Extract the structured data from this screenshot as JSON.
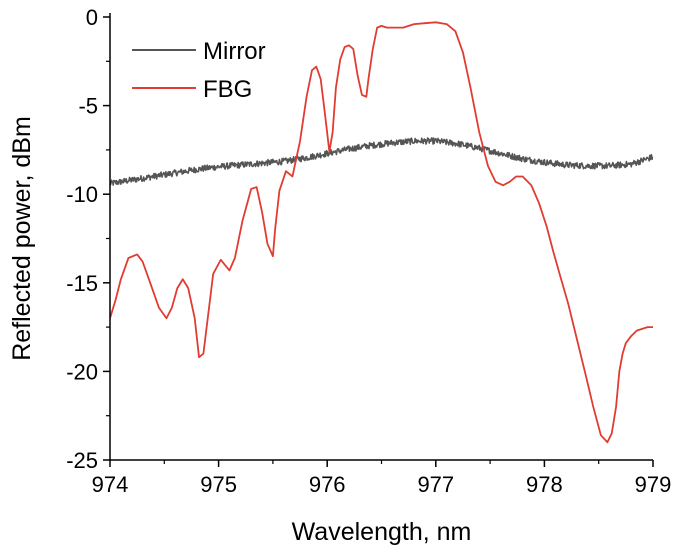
{
  "chart_data": {
    "type": "line",
    "title": "",
    "xlabel": "Wavelength, nm",
    "ylabel": "Reflected power, dBm",
    "xlim": [
      974,
      979
    ],
    "ylim": [
      -25,
      0
    ],
    "x_ticks": [
      974,
      975,
      976,
      977,
      978,
      979
    ],
    "y_ticks": [
      0,
      -5,
      -10,
      -15,
      -20,
      -25
    ],
    "x_tick_labels": [
      "974",
      "975",
      "976",
      "977",
      "978",
      "979"
    ],
    "y_tick_labels": [
      "0",
      "-5",
      "-10",
      "-15",
      "-20",
      "-25"
    ],
    "grid": false,
    "legend_position": "top-left",
    "series": [
      {
        "name": "Mirror",
        "color": "#555555",
        "noisy": true,
        "x": [
          974.0,
          974.2,
          974.4,
          974.6,
          974.8,
          975.0,
          975.2,
          975.4,
          975.6,
          975.8,
          976.0,
          976.2,
          976.4,
          976.6,
          976.8,
          977.0,
          977.2,
          977.4,
          977.6,
          977.8,
          978.0,
          978.2,
          978.4,
          978.6,
          978.8,
          979.0
        ],
        "y": [
          -9.4,
          -9.2,
          -9.0,
          -8.8,
          -8.6,
          -8.45,
          -8.35,
          -8.25,
          -8.15,
          -7.95,
          -7.7,
          -7.45,
          -7.25,
          -7.1,
          -7.0,
          -7.0,
          -7.15,
          -7.4,
          -7.7,
          -8.0,
          -8.2,
          -8.35,
          -8.4,
          -8.4,
          -8.3,
          -7.9
        ]
      },
      {
        "name": "FBG",
        "color": "#e03c32",
        "noisy": false,
        "x": [
          974.0,
          974.05,
          974.1,
          974.17,
          974.25,
          974.3,
          974.37,
          974.45,
          974.52,
          974.57,
          974.62,
          974.67,
          974.72,
          974.78,
          974.82,
          974.86,
          974.9,
          974.95,
          975.02,
          975.1,
          975.15,
          975.22,
          975.3,
          975.35,
          975.4,
          975.45,
          975.5,
          975.52,
          975.56,
          975.62,
          975.68,
          975.75,
          975.81,
          975.86,
          975.9,
          975.94,
          975.98,
          976.02,
          976.05,
          976.08,
          976.12,
          976.16,
          976.2,
          976.24,
          976.28,
          976.32,
          976.36,
          976.38,
          976.42,
          976.46,
          976.5,
          976.55,
          976.6,
          976.7,
          976.8,
          976.9,
          977.0,
          977.1,
          977.18,
          977.25,
          977.32,
          977.4,
          977.48,
          977.55,
          977.62,
          977.68,
          977.74,
          977.8,
          977.88,
          977.95,
          978.02,
          978.08,
          978.14,
          978.22,
          978.3,
          978.38,
          978.45,
          978.52,
          978.58,
          978.62,
          978.66,
          978.69,
          978.72,
          978.75,
          978.8,
          978.85,
          978.9,
          978.95,
          979.0
        ],
        "y": [
          -17.0,
          -16.0,
          -14.8,
          -13.6,
          -13.4,
          -13.8,
          -15.0,
          -16.4,
          -17.0,
          -16.4,
          -15.3,
          -14.8,
          -15.3,
          -17.0,
          -19.2,
          -19.0,
          -17.0,
          -14.5,
          -13.7,
          -14.3,
          -13.6,
          -11.5,
          -9.7,
          -9.6,
          -11.0,
          -12.8,
          -13.5,
          -12.0,
          -9.8,
          -8.7,
          -9.0,
          -7.0,
          -4.5,
          -3.0,
          -2.8,
          -3.5,
          -5.5,
          -7.6,
          -6.5,
          -4.0,
          -2.4,
          -1.7,
          -1.6,
          -1.8,
          -3.3,
          -4.4,
          -4.5,
          -3.5,
          -1.8,
          -0.6,
          -0.5,
          -0.6,
          -0.6,
          -0.6,
          -0.4,
          -0.35,
          -0.3,
          -0.4,
          -0.8,
          -2.0,
          -4.0,
          -6.5,
          -8.4,
          -9.3,
          -9.5,
          -9.3,
          -9.0,
          -9.0,
          -9.5,
          -10.5,
          -11.8,
          -13.2,
          -14.5,
          -16.2,
          -18.2,
          -20.2,
          -22.0,
          -23.6,
          -24.0,
          -23.5,
          -22.0,
          -20.0,
          -19.0,
          -18.4,
          -18.0,
          -17.7,
          -17.6,
          -17.5,
          -17.5
        ]
      }
    ]
  }
}
